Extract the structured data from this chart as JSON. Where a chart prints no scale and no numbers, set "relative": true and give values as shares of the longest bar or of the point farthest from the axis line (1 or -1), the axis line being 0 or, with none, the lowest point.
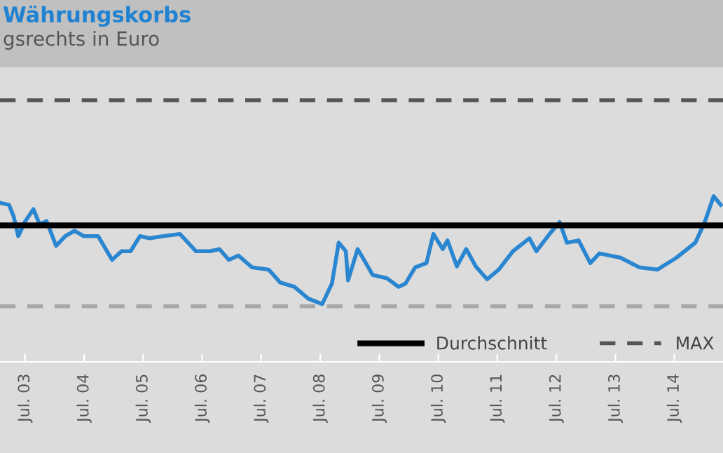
{
  "chart_data": {
    "type": "line",
    "title": "Währungskorbs",
    "subtitle": "gsrechts in Euro",
    "relative": true,
    "x": [
      "2003-01-27",
      "2003-03-24",
      "2003-04-22",
      "2003-05-20",
      "2003-07-03",
      "2003-08-22",
      "2003-09-29",
      "2003-11-11",
      "2004-01-09",
      "2004-03-06",
      "2004-05-02",
      "2004-06-29",
      "2004-09-25",
      "2004-12-21",
      "2005-02-17",
      "2005-04-14",
      "2005-06-11",
      "2005-08-09",
      "2005-11-04",
      "2006-02-13",
      "2006-05-24",
      "2006-08-19",
      "2006-10-16",
      "2006-12-13",
      "2007-02-10",
      "2007-05-06",
      "2007-08-16",
      "2007-10-27",
      "2008-01-23",
      "2008-04-18",
      "2008-07-13",
      "2008-09-11",
      "2008-10-23",
      "2008-12-06",
      "2008-12-20",
      "2009-02-17",
      "2009-04-09",
      "2009-05-21",
      "2009-08-17",
      "2009-10-28",
      "2009-12-10",
      "2010-02-08",
      "2010-04-19",
      "2010-06-01",
      "2010-07-29",
      "2010-08-27",
      "2010-10-24",
      "2010-12-21",
      "2011-02-18",
      "2011-04-29",
      "2011-07-11",
      "2011-10-06",
      "2012-01-16",
      "2012-02-28",
      "2012-05-25",
      "2012-07-21",
      "2012-09-04",
      "2012-11-16",
      "2013-01-27",
      "2013-03-24",
      "2013-08-02",
      "2013-11-26",
      "2014-03-19",
      "2014-07-14",
      "2014-11-08",
      "2015-01-05",
      "2015-03-01",
      "2015-04-14"
    ],
    "series": [
      {
        "color": "#2a86d0",
        "values": [
          0.94,
          0.92,
          0.81,
          0.63,
          0.77,
          0.88,
          0.74,
          0.77,
          0.54,
          0.63,
          0.68,
          0.63,
          0.63,
          0.41,
          0.49,
          0.49,
          0.63,
          0.61,
          0.63,
          0.65,
          0.49,
          0.49,
          0.51,
          0.41,
          0.45,
          0.34,
          0.32,
          0.2,
          0.16,
          0.05,
          0,
          0.19,
          0.57,
          0.49,
          0.22,
          0.51,
          0.38,
          0.27,
          0.24,
          0.16,
          0.19,
          0.34,
          0.38,
          0.65,
          0.51,
          0.59,
          0.35,
          0.51,
          0.35,
          0.23,
          0.32,
          0.49,
          0.61,
          0.49,
          0.66,
          0.76,
          0.57,
          0.59,
          0.38,
          0.47,
          0.43,
          0.34,
          0.32,
          0.43,
          0.57,
          0.76,
          1,
          0.92
        ]
      }
    ],
    "xlim": [
      "2003-01-27",
      "2015-04-28"
    ],
    "xticks": [
      {
        "value": "2003-07-01",
        "label": "Jul. 03"
      },
      {
        "value": "2004-07-01",
        "label": "Jul. 04"
      },
      {
        "value": "2005-07-01",
        "label": "Jul. 05"
      },
      {
        "value": "2006-07-01",
        "label": "Jul. 06"
      },
      {
        "value": "2007-07-01",
        "label": "Jul. 07"
      },
      {
        "value": "2008-07-01",
        "label": "Jul. 08"
      },
      {
        "value": "2009-07-01",
        "label": "Jul. 09"
      },
      {
        "value": "2010-07-01",
        "label": "Jul. 10"
      },
      {
        "value": "2011-07-01",
        "label": "Jul. 11"
      },
      {
        "value": "2012-07-01",
        "label": "Jul. 12"
      },
      {
        "value": "2013-07-01",
        "label": "Jul. 13"
      },
      {
        "value": "2014-07-01",
        "label": "Jul. 14"
      }
    ],
    "ref_lines": [
      {
        "axis": "y",
        "value": 0.73,
        "label": "Durchschnitt",
        "color": "#000000",
        "line_style": "solid"
      },
      {
        "axis": "y",
        "value": 1.89,
        "label": "MAX",
        "color": "#555555",
        "line_style": "dashed"
      },
      {
        "axis": "y",
        "value": -0.02,
        "label": null,
        "color": "#a8a8a8",
        "line_style": "dashed"
      }
    ],
    "legend": "bottom right"
  }
}
